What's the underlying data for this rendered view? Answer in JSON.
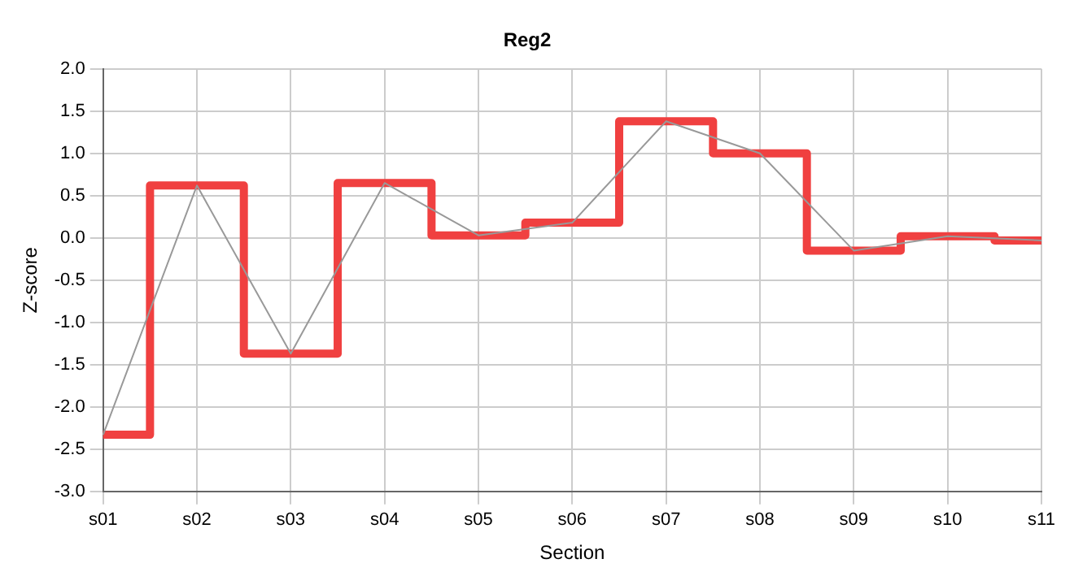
{
  "chart_data": {
    "type": "line",
    "title": "Reg2",
    "xlabel": "Section",
    "ylabel": "Z-score",
    "categories": [
      "s01",
      "s02",
      "s03",
      "s04",
      "s05",
      "s06",
      "s07",
      "s08",
      "s09",
      "s10",
      "s11"
    ],
    "series": [
      {
        "type": "line",
        "color": "#999999",
        "values": [
          -2.33,
          0.62,
          -1.37,
          0.65,
          0.03,
          0.18,
          1.38,
          1.0,
          -0.15,
          0.02,
          -0.03
        ]
      },
      {
        "type": "step",
        "color": "#f04040",
        "values": [
          -2.33,
          0.62,
          -1.37,
          0.65,
          0.03,
          0.18,
          1.38,
          1.0,
          -0.15,
          0.02,
          -0.03
        ]
      }
    ],
    "ylim": [
      -3,
      2
    ],
    "yticks": [
      {
        "value": -3,
        "label": "-3.0"
      },
      {
        "value": -2.5,
        "label": "-2.5"
      },
      {
        "value": -2,
        "label": "-2.0"
      },
      {
        "value": -1.5,
        "label": "-1.5"
      },
      {
        "value": -1,
        "label": "-1.0"
      },
      {
        "value": -0.5,
        "label": "-0.5"
      },
      {
        "value": 0,
        "label": "0.0"
      },
      {
        "value": 0.5,
        "label": "0.5"
      },
      {
        "value": 1,
        "label": "1.0"
      },
      {
        "value": 1.5,
        "label": "1.5"
      },
      {
        "value": 2,
        "label": "2.0"
      }
    ],
    "grid": true,
    "legend": false,
    "marker": "none",
    "line_style": "solid"
  }
}
